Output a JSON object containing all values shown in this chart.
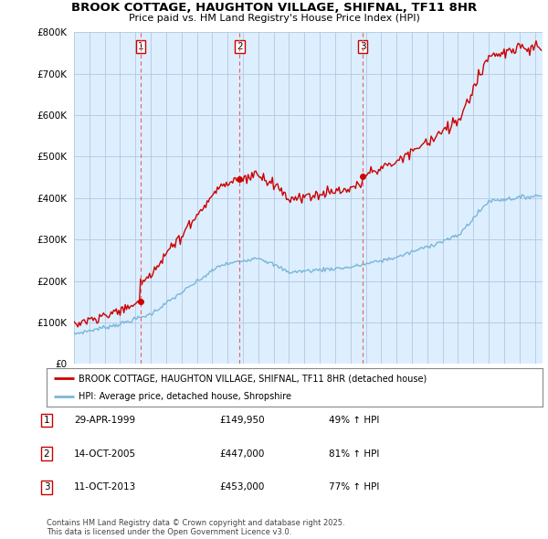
{
  "title": "BROOK COTTAGE, HAUGHTON VILLAGE, SHIFNAL, TF11 8HR",
  "subtitle": "Price paid vs. HM Land Registry's House Price Index (HPI)",
  "legend_line1": "BROOK COTTAGE, HAUGHTON VILLAGE, SHIFNAL, TF11 8HR (detached house)",
  "legend_line2": "HPI: Average price, detached house, Shropshire",
  "footnote": "Contains HM Land Registry data © Crown copyright and database right 2025.\nThis data is licensed under the Open Government Licence v3.0.",
  "sales": [
    {
      "num": 1,
      "date": "29-APR-1999",
      "price": 149950,
      "hpi_pct": "49% ↑ HPI",
      "year": 1999.33
    },
    {
      "num": 2,
      "date": "14-OCT-2005",
      "price": 447000,
      "hpi_pct": "81% ↑ HPI",
      "year": 2005.79
    },
    {
      "num": 3,
      "date": "11-OCT-2013",
      "price": 453000,
      "hpi_pct": "77% ↑ HPI",
      "year": 2013.79
    }
  ],
  "hpi_color": "#7ab6d8",
  "price_color": "#cc0000",
  "vline_color": "#dd6666",
  "plot_bg_color": "#ddeeff",
  "background_color": "#ffffff",
  "grid_color": "#b0c8e0",
  "ylim": [
    0,
    800000
  ],
  "yticks": [
    0,
    100000,
    200000,
    300000,
    400000,
    500000,
    600000,
    700000,
    800000
  ],
  "xlim_start": 1995.0,
  "xlim_end": 2025.5
}
